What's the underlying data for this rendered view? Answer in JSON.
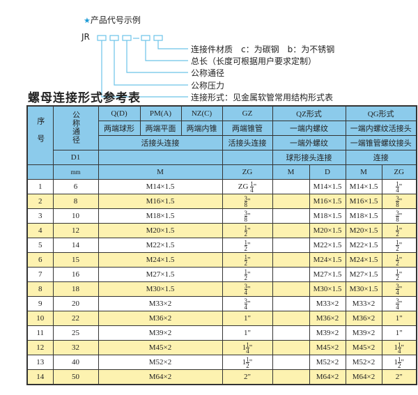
{
  "intro": {
    "star_icon": "star-icon",
    "heading": "产品代号示例",
    "code_prefix": "JR",
    "separator": "-",
    "labels": [
      "连接件材质　c：为碳钢　b：为不锈钢",
      "总长（长度可根据用户要求定制）",
      "公称通径",
      "公称压力",
      "连接形式：见金属软管常用结构形式表"
    ]
  },
  "title": "螺母连接形式参考表",
  "colors": {
    "header": "#8ccbeb",
    "row_alt": "#fdf2b0",
    "code_box": "#6cc3e8"
  },
  "table": {
    "head": {
      "seq": "序号",
      "dn": "公称通径",
      "q": "Q(D)",
      "pm": "PM(A)",
      "nz": "NZ(C)",
      "gz": "GZ",
      "qz": "QZ形式",
      "qg": "QG形式",
      "q2": "两端球形",
      "pm2": "两端平面",
      "nz2": "两端内锥",
      "gz2": "两端锥管",
      "qz2": "一端内螺纹",
      "qg2": "一端内螺纹活接头",
      "hj": "活接头连接",
      "gz3": "活接头连接",
      "qz3": "一端外螺纹",
      "qg3": "一端锥管螺纹接头",
      "d1": "D1",
      "qz4": "球形接头连接",
      "qg4": "连接",
      "mm": "mm",
      "m": "M",
      "zg": "ZG",
      "qzm": "M",
      "qzd": "D",
      "qgm": "M",
      "qgzg": "ZG"
    },
    "rows": [
      {
        "no": "1",
        "dn": "6",
        "m": "M14×1.5",
        "zg": {
          "pre": "ZG",
          "w": "",
          "n": "1",
          "d": "4",
          "u": "\""
        },
        "qzm": "",
        "qzd": "M14×1.5",
        "qgm": "M14×1.5",
        "qgzg": {
          "pre": "",
          "w": "",
          "n": "1",
          "d": "4",
          "u": "\""
        }
      },
      {
        "no": "2",
        "dn": "8",
        "m": "M16×1.5",
        "zg": {
          "pre": "",
          "w": "",
          "n": "3",
          "d": "8",
          "u": "\""
        },
        "qzm": "",
        "qzd": "M16×1.5",
        "qgm": "M16×1.5",
        "qgzg": {
          "pre": "",
          "w": "",
          "n": "3",
          "d": "8",
          "u": "\""
        }
      },
      {
        "no": "3",
        "dn": "10",
        "m": "M18×1.5",
        "zg": {
          "pre": "",
          "w": "",
          "n": "3",
          "d": "8",
          "u": "\""
        },
        "qzm": "",
        "qzd": "M18×1.5",
        "qgm": "M18×1.5",
        "qgzg": {
          "pre": "",
          "w": "",
          "n": "3",
          "d": "8",
          "u": "\""
        }
      },
      {
        "no": "4",
        "dn": "12",
        "m": "M20×1.5",
        "zg": {
          "pre": "",
          "w": "",
          "n": "1",
          "d": "2",
          "u": "\""
        },
        "qzm": "",
        "qzd": "M20×1.5",
        "qgm": "M20×1.5",
        "qgzg": {
          "pre": "",
          "w": "",
          "n": "1",
          "d": "2",
          "u": "\""
        }
      },
      {
        "no": "5",
        "dn": "14",
        "m": "M22×1.5",
        "zg": {
          "pre": "",
          "w": "",
          "n": "1",
          "d": "2",
          "u": "\""
        },
        "qzm": "",
        "qzd": "M22×1.5",
        "qgm": "M22×1.5",
        "qgzg": {
          "pre": "",
          "w": "",
          "n": "1",
          "d": "2",
          "u": "\""
        }
      },
      {
        "no": "6",
        "dn": "15",
        "m": "M24×1.5",
        "zg": {
          "pre": "",
          "w": "",
          "n": "1",
          "d": "2",
          "u": "\""
        },
        "qzm": "",
        "qzd": "M24×1.5",
        "qgm": "M24×1.5",
        "qgzg": {
          "pre": "",
          "w": "",
          "n": "1",
          "d": "2",
          "u": "\""
        }
      },
      {
        "no": "7",
        "dn": "16",
        "m": "M27×1.5",
        "zg": {
          "pre": "",
          "w": "",
          "n": "1",
          "d": "2",
          "u": "\""
        },
        "qzm": "",
        "qzd": "M27×1.5",
        "qgm": "M27×1.5",
        "qgzg": {
          "pre": "",
          "w": "",
          "n": "1",
          "d": "2",
          "u": "\""
        }
      },
      {
        "no": "8",
        "dn": "18",
        "m": "M30×1.5",
        "zg": {
          "pre": "",
          "w": "",
          "n": "3",
          "d": "4",
          "u": "\""
        },
        "qzm": "",
        "qzd": "M30×1.5",
        "qgm": "M30×1.5",
        "qgzg": {
          "pre": "",
          "w": "",
          "n": "3",
          "d": "4",
          "u": "\""
        }
      },
      {
        "no": "9",
        "dn": "20",
        "m": "M33×2",
        "zg": {
          "pre": "",
          "w": "",
          "n": "3",
          "d": "4",
          "u": "\""
        },
        "qzm": "",
        "qzd": "M33×2",
        "qgm": "M33×2",
        "qgzg": {
          "pre": "",
          "w": "",
          "n": "3",
          "d": "4",
          "u": "\""
        }
      },
      {
        "no": "10",
        "dn": "22",
        "m": "M36×2",
        "zg": {
          "pre": "",
          "w": "1",
          "n": "",
          "d": "",
          "u": "\""
        },
        "qzm": "",
        "qzd": "M36×2",
        "qgm": "M36×2",
        "qgzg": {
          "pre": "",
          "w": "1",
          "n": "",
          "d": "",
          "u": "\""
        }
      },
      {
        "no": "11",
        "dn": "25",
        "m": "M39×2",
        "zg": {
          "pre": "",
          "w": "1",
          "n": "",
          "d": "",
          "u": "\""
        },
        "qzm": "",
        "qzd": "M39×2",
        "qgm": "M39×2",
        "qgzg": {
          "pre": "",
          "w": "1",
          "n": "",
          "d": "",
          "u": "\""
        }
      },
      {
        "no": "12",
        "dn": "32",
        "m": "M45×2",
        "zg": {
          "pre": "",
          "w": "1",
          "n": "1",
          "d": "4",
          "u": "\""
        },
        "qzm": "",
        "qzd": "M45×2",
        "qgm": "M45×2",
        "qgzg": {
          "pre": "",
          "w": "1",
          "n": "1",
          "d": "4",
          "u": "\""
        }
      },
      {
        "no": "13",
        "dn": "40",
        "m": "M52×2",
        "zg": {
          "pre": "",
          "w": "1",
          "n": "1",
          "d": "2",
          "u": "\""
        },
        "qzm": "",
        "qzd": "M52×2",
        "qgm": "M52×2",
        "qgzg": {
          "pre": "",
          "w": "1",
          "n": "1",
          "d": "2",
          "u": "\""
        }
      },
      {
        "no": "14",
        "dn": "50",
        "m": "M64×2",
        "zg": {
          "pre": "",
          "w": "2",
          "n": "",
          "d": "",
          "u": "\""
        },
        "qzm": "",
        "qzd": "M64×2",
        "qgm": "M64×2",
        "qgzg": {
          "pre": "",
          "w": "2",
          "n": "",
          "d": "",
          "u": "\""
        }
      }
    ]
  }
}
